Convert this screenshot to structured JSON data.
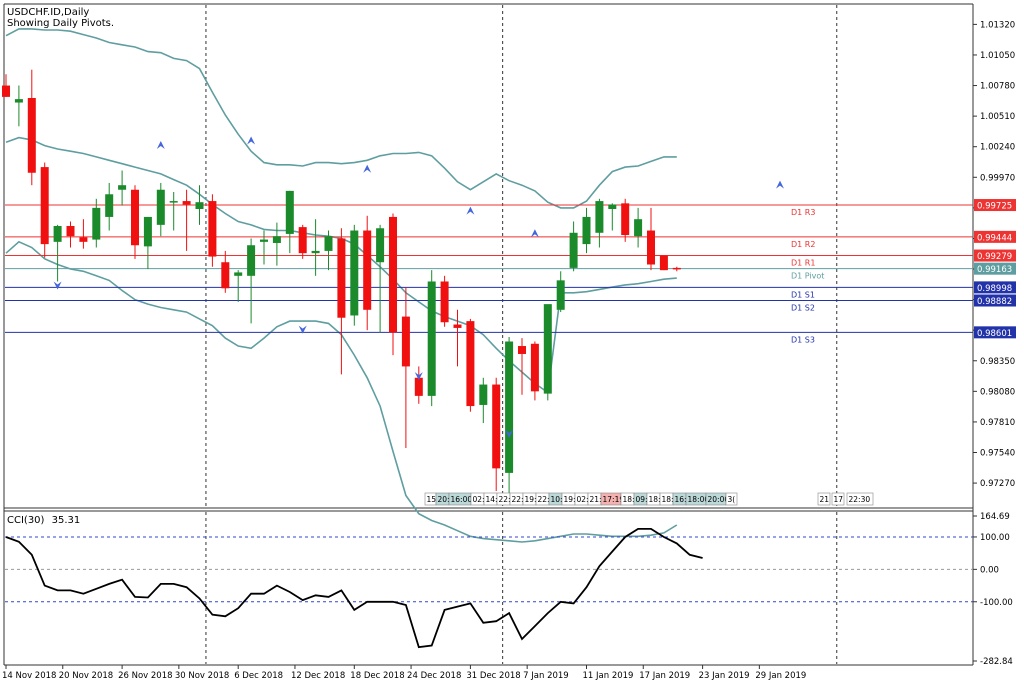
{
  "header": {
    "symbol_line": "USDCHF.ID,Daily",
    "subtitle": "Showing Daily Pivots."
  },
  "colors": {
    "bull": "#1a8a2a",
    "bear": "#f01010",
    "band": "#5f9ea0",
    "resistance": "#ee3333",
    "support": "#2233aa",
    "pivot": "#5f9ea0",
    "cci": "#000000",
    "fractal": "#4466dd",
    "grid": "#333333"
  },
  "chart_data": [
    {
      "type": "candlestick",
      "ylim": [
        0.9705,
        1.015
      ],
      "price_ticks": [
        "1.01320",
        "1.01050",
        "1.00780",
        "1.00510",
        "1.00240",
        "0.99970",
        "0.99700",
        "0.99430",
        "0.99160",
        "0.98890",
        "0.98620",
        "0.98350",
        "0.98080",
        "0.97810",
        "0.97540",
        "0.97270"
      ],
      "date_labels": [
        "14 Nov 2018",
        "20 Nov 2018",
        "26 Nov 2018",
        "30 Nov 2018",
        "6 Dec 2018",
        "12 Dec 2018",
        "18 Dec 2018",
        "24 Dec 2018",
        "31 Dec 2018",
        "7 Jan 2019",
        "11 Jan 2019",
        "17 Jan 2019",
        "23 Jan 2019",
        "29 Jan 2019"
      ],
      "candles": [
        {
          "o": 1.0078,
          "h": 1.0088,
          "l": 1.0068,
          "c": 1.0068
        },
        {
          "o": 1.0063,
          "h": 1.0078,
          "l": 1.0042,
          "c": 1.0066
        },
        {
          "o": 1.0067,
          "h": 1.0092,
          "l": 0.999,
          "c": 1.0001
        },
        {
          "o": 1.0006,
          "h": 1.001,
          "l": 0.9926,
          "c": 0.9938
        },
        {
          "o": 0.994,
          "h": 0.9955,
          "l": 0.9905,
          "c": 0.9954
        },
        {
          "o": 0.9954,
          "h": 0.9958,
          "l": 0.9935,
          "c": 0.9945
        },
        {
          "o": 0.9944,
          "h": 0.996,
          "l": 0.9934,
          "c": 0.994
        },
        {
          "o": 0.9942,
          "h": 0.9978,
          "l": 0.9935,
          "c": 0.997
        },
        {
          "o": 0.9962,
          "h": 0.9992,
          "l": 0.995,
          "c": 0.9982
        },
        {
          "o": 0.9986,
          "h": 1.0003,
          "l": 0.9972,
          "c": 0.999
        },
        {
          "o": 0.9986,
          "h": 0.999,
          "l": 0.9925,
          "c": 0.9937
        },
        {
          "o": 0.9936,
          "h": 0.9962,
          "l": 0.9916,
          "c": 0.9962
        },
        {
          "o": 0.9955,
          "h": 0.9992,
          "l": 0.9945,
          "c": 0.9986
        },
        {
          "o": 0.9976,
          "h": 0.9984,
          "l": 0.995,
          "c": 0.9976
        },
        {
          "o": 0.9976,
          "h": 0.9986,
          "l": 0.9932,
          "c": 0.9973
        },
        {
          "o": 0.9969,
          "h": 0.999,
          "l": 0.9955,
          "c": 0.9975
        },
        {
          "o": 0.9976,
          "h": 0.9982,
          "l": 0.9918,
          "c": 0.9927
        },
        {
          "o": 0.9922,
          "h": 0.9932,
          "l": 0.9895,
          "c": 0.9899
        },
        {
          "o": 0.991,
          "h": 0.9915,
          "l": 0.9887,
          "c": 0.9913
        },
        {
          "o": 0.991,
          "h": 0.9943,
          "l": 0.9868,
          "c": 0.9937
        },
        {
          "o": 0.994,
          "h": 0.995,
          "l": 0.992,
          "c": 0.9942
        },
        {
          "o": 0.9939,
          "h": 0.9957,
          "l": 0.9919,
          "c": 0.9945
        },
        {
          "o": 0.9947,
          "h": 0.9985,
          "l": 0.993,
          "c": 0.9985
        },
        {
          "o": 0.9953,
          "h": 0.9955,
          "l": 0.9925,
          "c": 0.993
        },
        {
          "o": 0.993,
          "h": 0.996,
          "l": 0.991,
          "c": 0.9932
        },
        {
          "o": 0.9932,
          "h": 0.995,
          "l": 0.9915,
          "c": 0.9945
        },
        {
          "o": 0.9943,
          "h": 0.9952,
          "l": 0.9823,
          "c": 0.9873
        },
        {
          "o": 0.9875,
          "h": 0.9955,
          "l": 0.9866,
          "c": 0.995
        },
        {
          "o": 0.995,
          "h": 0.9963,
          "l": 0.9862,
          "c": 0.988
        },
        {
          "o": 0.9922,
          "h": 0.9955,
          "l": 0.986,
          "c": 0.9952
        },
        {
          "o": 0.9962,
          "h": 0.9965,
          "l": 0.984,
          "c": 0.986
        },
        {
          "o": 0.9874,
          "h": 0.99,
          "l": 0.9758,
          "c": 0.983
        },
        {
          "o": 0.982,
          "h": 0.983,
          "l": 0.9797,
          "c": 0.9804
        },
        {
          "o": 0.9804,
          "h": 0.9915,
          "l": 0.9795,
          "c": 0.9905
        },
        {
          "o": 0.9905,
          "h": 0.991,
          "l": 0.9865,
          "c": 0.9869
        },
        {
          "o": 0.9867,
          "h": 0.988,
          "l": 0.983,
          "c": 0.9864
        },
        {
          "o": 0.987,
          "h": 0.9872,
          "l": 0.979,
          "c": 0.9795
        },
        {
          "o": 0.9796,
          "h": 0.982,
          "l": 0.978,
          "c": 0.9814
        },
        {
          "o": 0.9814,
          "h": 0.982,
          "l": 0.972,
          "c": 0.974
        },
        {
          "o": 0.9736,
          "h": 0.9856,
          "l": 0.9712,
          "c": 0.9852
        },
        {
          "o": 0.9848,
          "h": 0.9855,
          "l": 0.9805,
          "c": 0.9841
        },
        {
          "o": 0.985,
          "h": 0.9852,
          "l": 0.98,
          "c": 0.9808
        },
        {
          "o": 0.9806,
          "h": 0.9884,
          "l": 0.98,
          "c": 0.9885
        },
        {
          "o": 0.988,
          "h": 0.9914,
          "l": 0.9878,
          "c": 0.9906
        },
        {
          "o": 0.9917,
          "h": 0.9958,
          "l": 0.9914,
          "c": 0.9948
        },
        {
          "o": 0.9938,
          "h": 0.997,
          "l": 0.993,
          "c": 0.9962
        },
        {
          "o": 0.9948,
          "h": 0.9978,
          "l": 0.9935,
          "c": 0.9976
        },
        {
          "o": 0.9969,
          "h": 0.9974,
          "l": 0.995,
          "c": 0.9973
        },
        {
          "o": 0.9974,
          "h": 0.9978,
          "l": 0.994,
          "c": 0.9946
        },
        {
          "o": 0.9945,
          "h": 0.997,
          "l": 0.9935,
          "c": 0.996
        },
        {
          "o": 0.995,
          "h": 0.997,
          "l": 0.9915,
          "c": 0.992
        },
        {
          "o": 0.9928,
          "h": 0.9928,
          "l": 0.9915,
          "c": 0.9915
        },
        {
          "o": 0.9917,
          "h": 0.9918,
          "l": 0.9914,
          "c": 0.9916
        }
      ],
      "bands": {
        "upper": [
          1.0122,
          1.0128,
          1.0128,
          1.0127,
          1.0127,
          1.0126,
          1.0123,
          1.012,
          1.0116,
          1.0114,
          1.0112,
          1.0108,
          1.0107,
          1.0102,
          1.01,
          1.0093,
          1.0072,
          1.0052,
          1.0035,
          1.002,
          1.001,
          1.0008,
          1.0008,
          1.0007,
          1.001,
          1.001,
          1.0009,
          1.001,
          1.0012,
          1.0016,
          1.0018,
          1.0018,
          1.0019,
          1.0016,
          1.0005,
          0.9993,
          0.9986,
          0.9993,
          1.0,
          0.9994,
          0.999,
          0.9985,
          0.9975,
          0.997,
          0.997,
          0.9976,
          0.999,
          1.0002,
          1.0006,
          1.0007,
          1.0011,
          1.0015,
          1.0015
        ],
        "middle": [
          1.0028,
          1.0032,
          1.003,
          1.0025,
          1.0022,
          1.002,
          1.0018,
          1.0015,
          1.0012,
          1.0009,
          1.0006,
          1.0003,
          1.0,
          0.9995,
          0.999,
          0.9982,
          0.9973,
          0.9965,
          0.9958,
          0.9955,
          0.9951,
          0.995,
          0.995,
          0.9948,
          0.9946,
          0.9945,
          0.9943,
          0.9938,
          0.9928,
          0.9918,
          0.9907,
          0.9895,
          0.9887,
          0.9879,
          0.9874,
          0.987,
          0.9866,
          0.9858,
          0.9846,
          0.9835,
          0.9825,
          0.9815,
          0.9807,
          0.9895,
          0.9895,
          0.9896,
          0.9898,
          0.99,
          0.9902,
          0.9903,
          0.9905,
          0.9907,
          0.9908
        ],
        "lower": [
          0.993,
          0.994,
          0.9935,
          0.9925,
          0.992,
          0.9916,
          0.9914,
          0.991,
          0.9906,
          0.9897,
          0.9889,
          0.9885,
          0.9882,
          0.988,
          0.9878,
          0.9872,
          0.9866,
          0.9855,
          0.9848,
          0.9846,
          0.9855,
          0.9865,
          0.987,
          0.987,
          0.987,
          0.9868,
          0.9858,
          0.984,
          0.982,
          0.9795,
          0.9755,
          0.9716,
          0.97,
          0.9694,
          0.969,
          0.9685,
          0.968,
          0.9678,
          0.9677,
          0.9676,
          0.9675,
          0.9676,
          0.9678,
          0.968,
          0.9682,
          0.9682,
          0.9681,
          0.968,
          0.968,
          0.968,
          0.9681,
          0.9683,
          0.969
        ]
      },
      "pivots": [
        {
          "label": "D1 R3",
          "value": "0.99725",
          "kind": "resistance"
        },
        {
          "label": "D1 R2",
          "value": "0.99444",
          "kind": "resistance"
        },
        {
          "label": "D1 R1",
          "value": "0.99279",
          "kind": "resistance"
        },
        {
          "label": "D1 Pivot",
          "value": "0.99163",
          "kind": "pivot"
        },
        {
          "label": "D1 S1",
          "value": "0.98998",
          "kind": "support"
        },
        {
          "label": "D1 S2",
          "value": "0.98882",
          "kind": "support"
        },
        {
          "label": "D1 S3",
          "value": "0.98601",
          "kind": "support"
        }
      ],
      "fractals_up": [
        {
          "i": 12,
          "p": 1.0022
        },
        {
          "i": 19,
          "p": 1.0026
        },
        {
          "i": 28,
          "p": 1.0001
        },
        {
          "i": 36,
          "p": 0.9964
        },
        {
          "i": 41,
          "p": 0.9944
        },
        {
          "i": 60,
          "p": 0.9987
        }
      ],
      "fractals_down": [
        {
          "i": 4,
          "p": 0.9905
        },
        {
          "i": 23,
          "p": 0.9866
        },
        {
          "i": 32,
          "p": 0.9825
        },
        {
          "i": 39,
          "p": 0.9774
        }
      ],
      "session_times": [
        "15:",
        "20:",
        "16:00",
        "02:",
        "14:",
        "22:",
        "22:",
        "19:",
        "22:",
        "10:",
        "19:",
        "02:",
        "21:",
        "17:19",
        "18:",
        "09:",
        "18:",
        "18:",
        "16:",
        "18:00",
        "20:00",
        "3("
      ],
      "session_times_2": [
        "21",
        "17",
        "22:30"
      ]
    },
    {
      "type": "line",
      "name": "CCI(30)",
      "current_value": "35.31",
      "ylim": [
        -282.84,
        164.69
      ],
      "y_ticks": [
        "164.69",
        "100.00",
        "0.00",
        "-100.00",
        "-282.84"
      ],
      "values": [
        100,
        85,
        45,
        -50,
        -65,
        -65,
        -75,
        -60,
        -45,
        -32,
        -85,
        -87,
        -45,
        -45,
        -55,
        -90,
        -140,
        -145,
        -120,
        -75,
        -75,
        -50,
        -70,
        -95,
        -80,
        -85,
        -65,
        -125,
        -100,
        -100,
        -100,
        -110,
        -240,
        -235,
        -125,
        -115,
        -105,
        -165,
        -160,
        -135,
        -215,
        -175,
        -135,
        -100,
        -105,
        -55,
        10,
        55,
        100,
        125,
        125,
        100,
        80,
        45,
        35
      ]
    }
  ]
}
